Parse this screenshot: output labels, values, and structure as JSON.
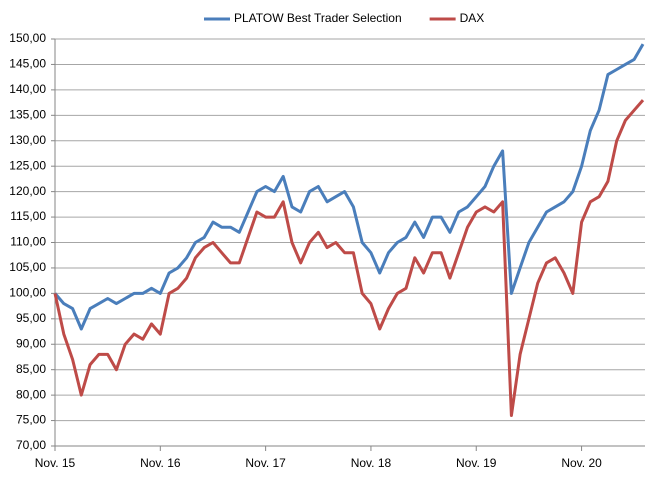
{
  "chart_data": {
    "type": "line",
    "x": [
      "2015-11",
      "2015-12",
      "2016-01",
      "2016-02",
      "2016-03",
      "2016-04",
      "2016-05",
      "2016-06",
      "2016-07",
      "2016-08",
      "2016-09",
      "2016-10",
      "2016-11",
      "2016-12",
      "2017-01",
      "2017-02",
      "2017-03",
      "2017-04",
      "2017-05",
      "2017-06",
      "2017-07",
      "2017-08",
      "2017-09",
      "2017-10",
      "2017-11",
      "2017-12",
      "2018-01",
      "2018-02",
      "2018-03",
      "2018-04",
      "2018-05",
      "2018-06",
      "2018-07",
      "2018-08",
      "2018-09",
      "2018-10",
      "2018-11",
      "2018-12",
      "2019-01",
      "2019-02",
      "2019-03",
      "2019-04",
      "2019-05",
      "2019-06",
      "2019-07",
      "2019-08",
      "2019-09",
      "2019-10",
      "2019-11",
      "2019-12",
      "2020-01",
      "2020-02",
      "2020-03",
      "2020-04",
      "2020-05",
      "2020-06",
      "2020-07",
      "2020-08",
      "2020-09",
      "2020-10",
      "2020-11",
      "2020-12",
      "2021-01",
      "2021-02",
      "2021-03",
      "2021-04",
      "2021-05",
      "2021-06"
    ],
    "series": [
      {
        "name": "PLATOW Best Trader Selection",
        "color": "#4a7ebb",
        "values": [
          100,
          98,
          97,
          93,
          97,
          98,
          99,
          98,
          99,
          100,
          100,
          101,
          100,
          104,
          105,
          107,
          110,
          111,
          114,
          113,
          113,
          112,
          116,
          120,
          121,
          120,
          123,
          117,
          116,
          120,
          121,
          118,
          119,
          120,
          117,
          110,
          108,
          104,
          108,
          110,
          111,
          114,
          111,
          115,
          115,
          112,
          116,
          117,
          119,
          121,
          125,
          128,
          100,
          105,
          110,
          113,
          116,
          117,
          118,
          120,
          125,
          132,
          136,
          143,
          144,
          145,
          146,
          149
        ]
      },
      {
        "name": "DAX",
        "color": "#be4b48",
        "values": [
          100,
          92,
          87,
          80,
          86,
          88,
          88,
          85,
          90,
          92,
          91,
          94,
          92,
          100,
          101,
          103,
          107,
          109,
          110,
          108,
          106,
          106,
          111,
          116,
          115,
          115,
          118,
          110,
          106,
          110,
          112,
          109,
          110,
          108,
          108,
          100,
          98,
          93,
          97,
          100,
          101,
          107,
          104,
          108,
          108,
          103,
          108,
          113,
          116,
          117,
          116,
          118,
          76,
          88,
          95,
          102,
          106,
          107,
          104,
          100,
          114,
          118,
          119,
          122,
          130,
          134,
          136,
          138
        ]
      }
    ],
    "ylim": [
      70,
      150
    ],
    "yticks": [
      {
        "value": 70,
        "label": "70,00"
      },
      {
        "value": 75,
        "label": "75,00"
      },
      {
        "value": 80,
        "label": "80,00"
      },
      {
        "value": 85,
        "label": "85,00"
      },
      {
        "value": 90,
        "label": "90,00"
      },
      {
        "value": 95,
        "label": "95,00"
      },
      {
        "value": 100,
        "label": "100,00"
      },
      {
        "value": 105,
        "label": "105,00"
      },
      {
        "value": 110,
        "label": "110,00"
      },
      {
        "value": 115,
        "label": "115,00"
      },
      {
        "value": 120,
        "label": "120,00"
      },
      {
        "value": 125,
        "label": "125,00"
      },
      {
        "value": 130,
        "label": "130,00"
      },
      {
        "value": 135,
        "label": "135,00"
      },
      {
        "value": 140,
        "label": "140,00"
      },
      {
        "value": 145,
        "label": "145,00"
      },
      {
        "value": 150,
        "label": "150,00"
      }
    ],
    "xticks": [
      {
        "value": "2015-11",
        "label": "Nov. 15"
      },
      {
        "value": "2016-11",
        "label": "Nov. 16"
      },
      {
        "value": "2017-11",
        "label": "Nov. 17"
      },
      {
        "value": "2018-11",
        "label": "Nov. 18"
      },
      {
        "value": "2019-11",
        "label": "Nov. 19"
      },
      {
        "value": "2020-11",
        "label": "Nov. 20"
      }
    ],
    "grid": true,
    "legend": "top"
  }
}
